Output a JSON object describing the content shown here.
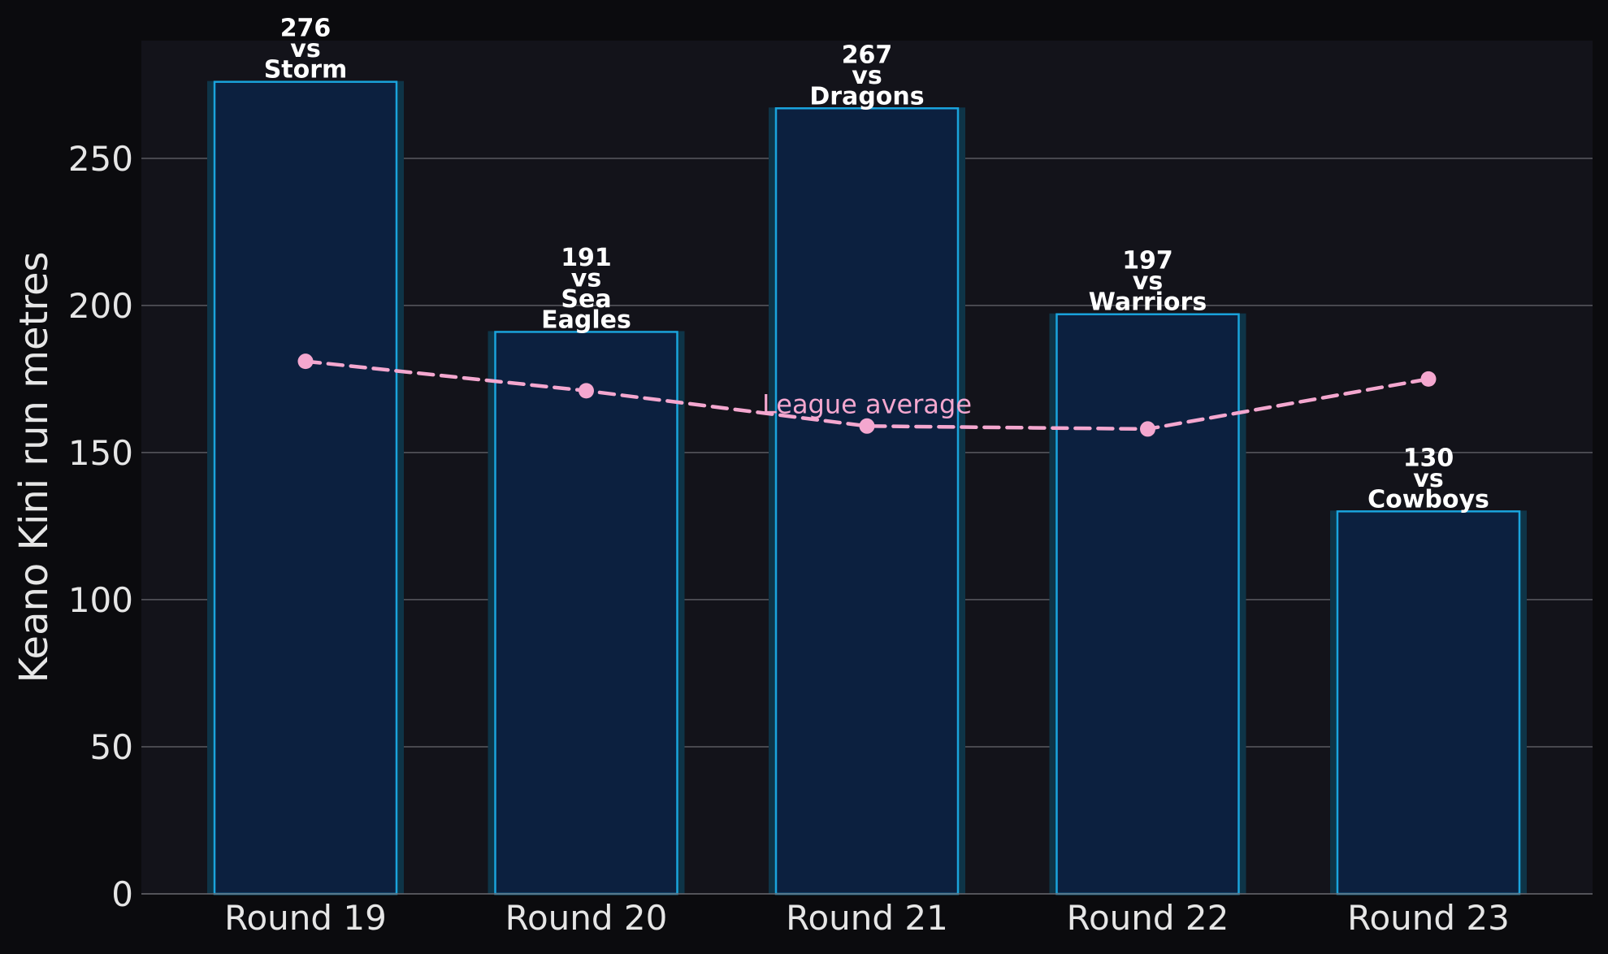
{
  "chart_data": {
    "type": "bar",
    "categories": [
      "Round 19",
      "Round 20",
      "Round 21",
      "Round 22",
      "Round 23"
    ],
    "series": [
      {
        "values": [
          276,
          191,
          267,
          197,
          130
        ]
      },
      {
        "name": "League average",
        "type": "line",
        "values": [
          181,
          171,
          159,
          158,
          175
        ]
      }
    ],
    "bar_labels": [
      [
        "276",
        "vs",
        "Storm"
      ],
      [
        "191",
        "vs",
        "Sea",
        "Eagles"
      ],
      [
        "267",
        "vs",
        "Dragons"
      ],
      [
        "197",
        "vs",
        "Warriors"
      ],
      [
        "130",
        "vs",
        "Cowboys"
      ]
    ],
    "average_label": "League average",
    "ylabel": "Keano Kini run metres",
    "xlabel": "",
    "ylim": [
      0,
      290
    ],
    "yticks": [
      0,
      50,
      100,
      150,
      200,
      250
    ],
    "grid": "horizontal",
    "colors": {
      "page_background": "#0b0b0e",
      "plot_background": "#13131a",
      "bar_fill": "#0c203f",
      "bar_edge": "#1aa3dc",
      "bar_glow": "#0e3447",
      "average_line": "#f4a7cf",
      "grid": "#5a5a60",
      "text": "#e6e6e6"
    }
  }
}
